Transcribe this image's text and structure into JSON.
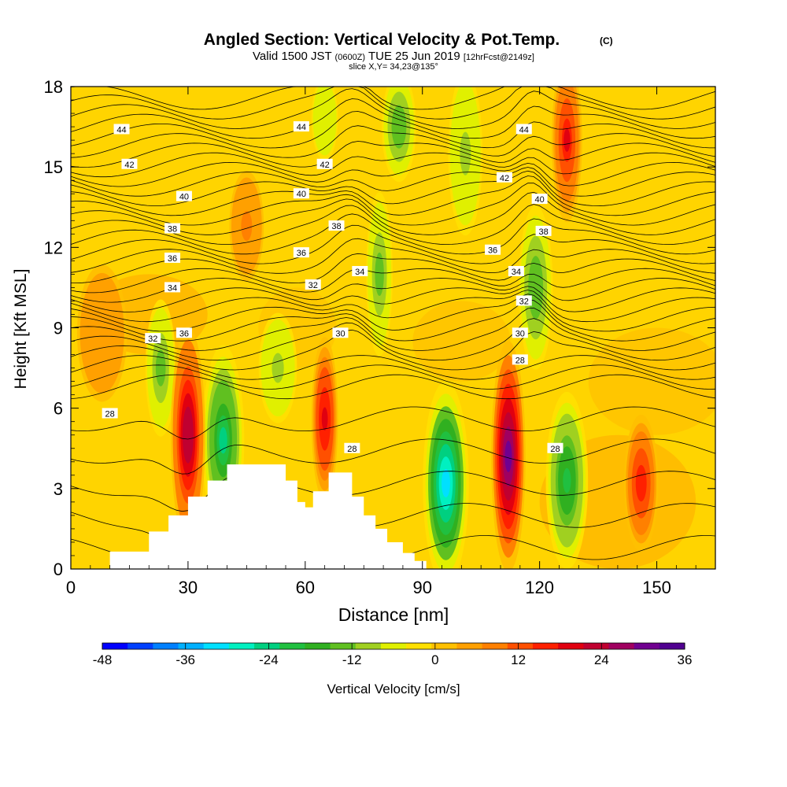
{
  "header": {
    "title_main": "Angled Section: Vertical Velocity & Pot.Temp.",
    "title_suffix": "(C)",
    "valid_prefix": "Valid 1500 JST",
    "valid_utc": "(0600Z)",
    "valid_date": "TUE 25 Jun 2019",
    "valid_fcst": "[12hrFcst@2149z]",
    "slice": "slice X,Y= 34,23@135°"
  },
  "chart_data": {
    "type": "heatmap",
    "title": "Angled Section: Vertical Velocity & Pot.Temp.",
    "xlabel": "Distance [nm]",
    "ylabel": "Height [Kft MSL]",
    "xlim": [
      0,
      165
    ],
    "ylim": [
      0,
      18
    ],
    "x_ticks": [
      "0",
      "30",
      "60",
      "90",
      "120",
      "150"
    ],
    "x_tick_values": [
      0,
      30,
      60,
      90,
      120,
      150
    ],
    "y_ticks": [
      "0",
      "3",
      "6",
      "9",
      "12",
      "15",
      "18"
    ],
    "y_tick_values": [
      0,
      3,
      6,
      9,
      12,
      15,
      18
    ],
    "colorbar": {
      "label": "Vertical Velocity [cm/s]",
      "tick_labels": [
        "-48",
        "-36",
        "-24",
        "-12",
        "0",
        "12",
        "24",
        "36"
      ],
      "tick_values": [
        -48,
        -36,
        -24,
        -12,
        0,
        12,
        24,
        36
      ],
      "colors": [
        "#0000ff",
        "#0040ff",
        "#0080ff",
        "#00b0ff",
        "#00e0ff",
        "#00f0c0",
        "#00d080",
        "#20c040",
        "#30b020",
        "#60c020",
        "#a0d020",
        "#e0f000",
        "#ffe000",
        "#ffc000",
        "#ffa000",
        "#ff8000",
        "#ff5000",
        "#ff2000",
        "#e00010",
        "#c00030",
        "#a00060",
        "#700090",
        "#500090"
      ]
    },
    "terrain_profile": [
      [
        0,
        0
      ],
      [
        10,
        0
      ],
      [
        10,
        0.65
      ],
      [
        20,
        0.65
      ],
      [
        20,
        1.4
      ],
      [
        25,
        1.4
      ],
      [
        25,
        2.0
      ],
      [
        30,
        2.0
      ],
      [
        30,
        2.7
      ],
      [
        35,
        2.7
      ],
      [
        35,
        3.3
      ],
      [
        40,
        3.3
      ],
      [
        40,
        3.9
      ],
      [
        55,
        3.9
      ],
      [
        55,
        3.3
      ],
      [
        58,
        3.3
      ],
      [
        58,
        2.5
      ],
      [
        60,
        2.5
      ],
      [
        60,
        2.3
      ],
      [
        62,
        2.3
      ],
      [
        62,
        2.9
      ],
      [
        66,
        2.9
      ],
      [
        66,
        3.6
      ],
      [
        72,
        3.6
      ],
      [
        72,
        2.7
      ],
      [
        75,
        2.7
      ],
      [
        75,
        2.0
      ],
      [
        78,
        2.0
      ],
      [
        78,
        1.5
      ],
      [
        81,
        1.5
      ],
      [
        81,
        1.0
      ],
      [
        85,
        1.0
      ],
      [
        85,
        0.6
      ],
      [
        88,
        0.6
      ],
      [
        88,
        0.3
      ],
      [
        91,
        0.3
      ],
      [
        91,
        0
      ],
      [
        165,
        0
      ]
    ],
    "updrafts": [
      {
        "x": 30,
        "z": 5.0,
        "peak": 28
      },
      {
        "x": 65,
        "z": 5.6,
        "peak": 22
      },
      {
        "x": 112,
        "z": 4.2,
        "peak": 34
      },
      {
        "x": 127,
        "z": 16.0,
        "peak": 20
      },
      {
        "x": 146,
        "z": 3.2,
        "peak": 18
      },
      {
        "x": 45,
        "z": 12.8,
        "peak": 8
      },
      {
        "x": 8,
        "z": 8.8,
        "peak": 6
      }
    ],
    "downdrafts": [
      {
        "x": 96,
        "z": 3.2,
        "peak": -34
      },
      {
        "x": 39,
        "z": 4.8,
        "peak": -26
      },
      {
        "x": 127,
        "z": 3.3,
        "peak": -22
      },
      {
        "x": 84,
        "z": 16.5,
        "peak": -16
      },
      {
        "x": 79,
        "z": 11.0,
        "peak": -14
      },
      {
        "x": 119,
        "z": 10.5,
        "peak": -16
      },
      {
        "x": 23,
        "z": 7.5,
        "peak": -14
      },
      {
        "x": 53,
        "z": 7.5,
        "peak": -10
      },
      {
        "x": 101,
        "z": 15.5,
        "peak": -10
      },
      {
        "x": 65,
        "z": 16.8,
        "peak": -6
      }
    ],
    "theta_levels": [
      "28",
      "30",
      "32",
      "34",
      "36",
      "38",
      "40",
      "42",
      "44"
    ],
    "contour_labels": [
      {
        "text": "44",
        "x": 13,
        "z": 16.4
      },
      {
        "text": "44",
        "x": 59,
        "z": 16.5
      },
      {
        "text": "44",
        "x": 116,
        "z": 16.4
      },
      {
        "text": "42",
        "x": 15,
        "z": 15.1
      },
      {
        "text": "42",
        "x": 65,
        "z": 15.1
      },
      {
        "text": "42",
        "x": 111,
        "z": 14.6
      },
      {
        "text": "40",
        "x": 29,
        "z": 13.9
      },
      {
        "text": "40",
        "x": 59,
        "z": 14.0
      },
      {
        "text": "40",
        "x": 120,
        "z": 13.8
      },
      {
        "text": "38",
        "x": 26,
        "z": 12.7
      },
      {
        "text": "38",
        "x": 68,
        "z": 12.8
      },
      {
        "text": "38",
        "x": 121,
        "z": 12.6
      },
      {
        "text": "36",
        "x": 26,
        "z": 11.6
      },
      {
        "text": "36",
        "x": 59,
        "z": 11.8
      },
      {
        "text": "36",
        "x": 108,
        "z": 11.9
      },
      {
        "text": "34",
        "x": 26,
        "z": 10.5
      },
      {
        "text": "34",
        "x": 74,
        "z": 11.1
      },
      {
        "text": "34",
        "x": 114,
        "z": 11.1
      },
      {
        "text": "32",
        "x": 21,
        "z": 8.6
      },
      {
        "text": "32",
        "x": 62,
        "z": 10.6
      },
      {
        "text": "32",
        "x": 116,
        "z": 10.0
      },
      {
        "text": "36",
        "x": 29,
        "z": 8.8
      },
      {
        "text": "30",
        "x": 69,
        "z": 8.8
      },
      {
        "text": "30",
        "x": 115,
        "z": 8.8
      },
      {
        "text": "28",
        "x": 10,
        "z": 5.8
      },
      {
        "text": "28",
        "x": 115,
        "z": 7.8
      },
      {
        "text": "28",
        "x": 72,
        "z": 4.5
      },
      {
        "text": "28",
        "x": 124,
        "z": 4.5
      }
    ]
  }
}
